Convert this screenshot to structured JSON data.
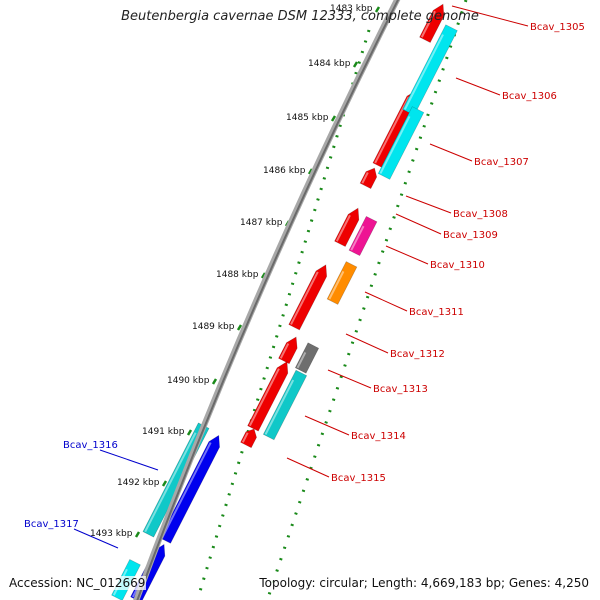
{
  "title": "Beutenbergia cavernae DSM 12333, complete genome",
  "footer": {
    "accession": "Accession: NC_012669",
    "summary": "Topology: circular; Length: 4,669,183 bp; Genes: 4,250"
  },
  "colors": {
    "backbone": "#8a8a8a",
    "tick": "#1a8a1a",
    "forward_label": "#cc0000",
    "reverse_label": "#0000cc",
    "red_gene": "#ee0000",
    "cyan_gene": "#00e5ee",
    "teal_gene": "#10c8c8",
    "blue_gene": "#0000ee",
    "magenta_gene": "#ee1493",
    "orange_gene": "#ff8c00",
    "grey_gene": "#6e6e6e"
  },
  "ticks": [
    {
      "label": "1483 kbp"
    },
    {
      "label": "1484 kbp"
    },
    {
      "label": "1485 kbp"
    },
    {
      "label": "1486 kbp"
    },
    {
      "label": "1487 kbp"
    },
    {
      "label": "1488 kbp"
    },
    {
      "label": "1489 kbp"
    },
    {
      "label": "1490 kbp"
    },
    {
      "label": "1491 kbp"
    },
    {
      "label": "1492 kbp"
    },
    {
      "label": "1493 kbp"
    }
  ],
  "genes": [
    {
      "label": "Bcav_1305",
      "strand": "forward"
    },
    {
      "label": "Bcav_1306",
      "strand": "forward"
    },
    {
      "label": "Bcav_1307",
      "strand": "forward"
    },
    {
      "label": "Bcav_1308",
      "strand": "forward"
    },
    {
      "label": "Bcav_1309",
      "strand": "forward"
    },
    {
      "label": "Bcav_1310",
      "strand": "forward"
    },
    {
      "label": "Bcav_1311",
      "strand": "forward"
    },
    {
      "label": "Bcav_1312",
      "strand": "forward"
    },
    {
      "label": "Bcav_1313",
      "strand": "forward"
    },
    {
      "label": "Bcav_1314",
      "strand": "forward"
    },
    {
      "label": "Bcav_1315",
      "strand": "forward"
    },
    {
      "label": "Bcav_1316",
      "strand": "reverse"
    },
    {
      "label": "Bcav_1317",
      "strand": "reverse"
    }
  ]
}
